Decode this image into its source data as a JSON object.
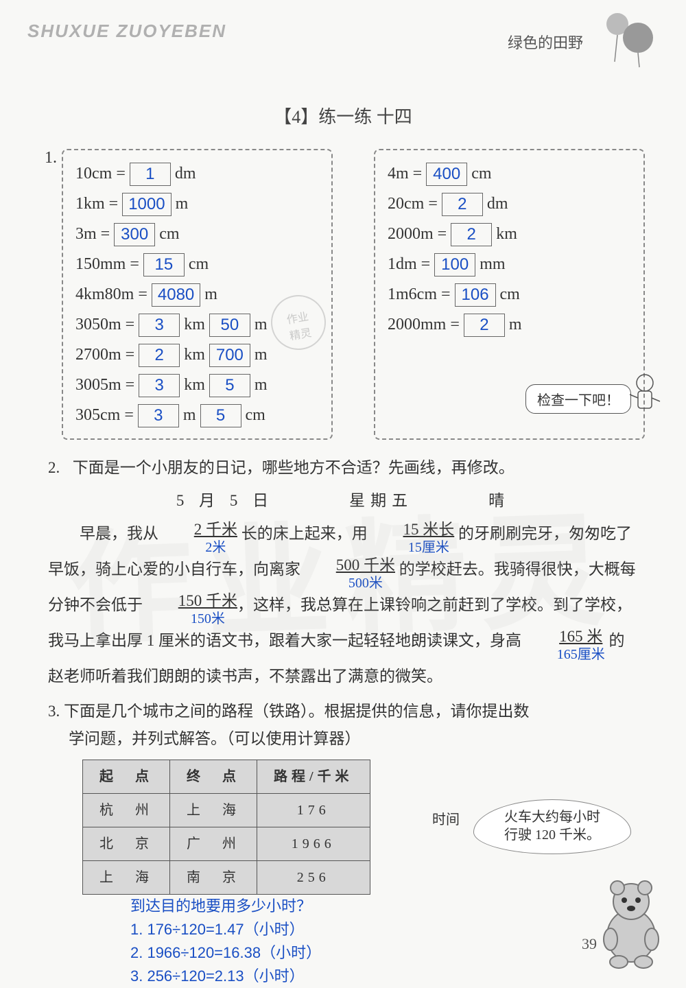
{
  "header": {
    "pinyin": "SHUXUE ZUOYEBEN",
    "right": "绿色的田野"
  },
  "title": "【4】练一练 十四",
  "q1": {
    "number": "1.",
    "left": [
      {
        "lhs": "10cm =",
        "ans": [
          "1"
        ],
        "rhs": [
          "dm"
        ]
      },
      {
        "lhs": "1km =",
        "ans": [
          "1000"
        ],
        "rhs": [
          "m"
        ]
      },
      {
        "lhs": "3m =",
        "ans": [
          "300"
        ],
        "rhs": [
          "cm"
        ]
      },
      {
        "lhs": "150mm =",
        "ans": [
          "15"
        ],
        "rhs": [
          "cm"
        ]
      },
      {
        "lhs": "4km80m =",
        "ans": [
          "4080"
        ],
        "rhs": [
          "m"
        ]
      },
      {
        "lhs": "3050m =",
        "ans": [
          "3",
          "50"
        ],
        "rhs": [
          "km",
          "m"
        ]
      },
      {
        "lhs": "2700m =",
        "ans": [
          "2",
          "700"
        ],
        "rhs": [
          "km",
          "m"
        ]
      },
      {
        "lhs": "3005m =",
        "ans": [
          "3",
          "5"
        ],
        "rhs": [
          "km",
          "m"
        ]
      },
      {
        "lhs": "305cm =",
        "ans": [
          "3",
          "5"
        ],
        "rhs": [
          "m",
          "cm"
        ]
      }
    ],
    "right": [
      {
        "lhs": "4m =",
        "ans": [
          "400"
        ],
        "rhs": [
          "cm"
        ]
      },
      {
        "lhs": "20cm =",
        "ans": [
          "2"
        ],
        "rhs": [
          "dm"
        ]
      },
      {
        "lhs": "2000m =",
        "ans": [
          "2"
        ],
        "rhs": [
          "km"
        ]
      },
      {
        "lhs": "1dm =",
        "ans": [
          "100"
        ],
        "rhs": [
          "mm"
        ]
      },
      {
        "lhs": "1m6cm =",
        "ans": [
          "106"
        ],
        "rhs": [
          "cm"
        ]
      },
      {
        "lhs": "2000mm =",
        "ans": [
          "2"
        ],
        "rhs": [
          "m"
        ]
      }
    ],
    "check": "检查一下吧！"
  },
  "q2": {
    "number": "2.",
    "prompt": "下面是一个小朋友的日记，哪些地方不合适？先画线，再修改。",
    "date": "5 月 5 日",
    "weekday": "星期五",
    "weather": "晴",
    "body_parts": {
      "p1a": "早晨，我从 ",
      "s1": "2 千米",
      "c1": "2米",
      "p1b": " 长的床上起来，用 ",
      "s2": "15 米长",
      "c2": "15厘米",
      "p1c": " 的牙刷刷完牙，匆匆吃了早饭，骑上心爱的小自行车，向离家 ",
      "s3": "500 千米",
      "c3": "500米",
      "p1d": " 的学校赶去。我骑得很快，大概每分钟不会低于 ",
      "s4": "150 千米",
      "c4": "150米",
      "p1e": "，这样，我总算在上课铃响之前赶到了学校。到了学校，我马上拿出厚 1 厘米的语文书，跟着大家一起轻轻地朗读课文，身高 ",
      "s5": "165 米",
      "c5": "165厘米",
      "p1f": " 的赵老师听着我们朗朗的读书声，不禁露出了满意的微笑。"
    }
  },
  "q3": {
    "number": "3.",
    "prompt_l1": "下面是几个城市之间的路程（铁路）。根据提供的信息，请你提出数",
    "prompt_l2": "学问题，并列式解答。（可以使用计算器）",
    "side_label": "时间",
    "cloud_l1": "火车大约每小时",
    "cloud_l2": "行驶 120 千米。",
    "table": {
      "headers": [
        "起　点",
        "终　点",
        "路程/千米"
      ],
      "rows": [
        [
          "杭　州",
          "上　海",
          "176"
        ],
        [
          "北　京",
          "广　州",
          "1966"
        ],
        [
          "上　海",
          "南　京",
          "256"
        ]
      ]
    },
    "answer_q": "到达目的地要用多少小时？",
    "answers": [
      "1. 176÷120=1.47（小时）",
      "2. 1966÷120=16.38（小时）",
      "3. 256÷120=2.13（小时）"
    ]
  },
  "page_number": "39",
  "stamp": {
    "l1": "作业",
    "l2": "精灵"
  },
  "watermark": "作业精灵",
  "colors": {
    "answer_blue": "#1a4fc4",
    "text": "#333333",
    "border": "#666666",
    "bg": "#f8f8f6"
  }
}
